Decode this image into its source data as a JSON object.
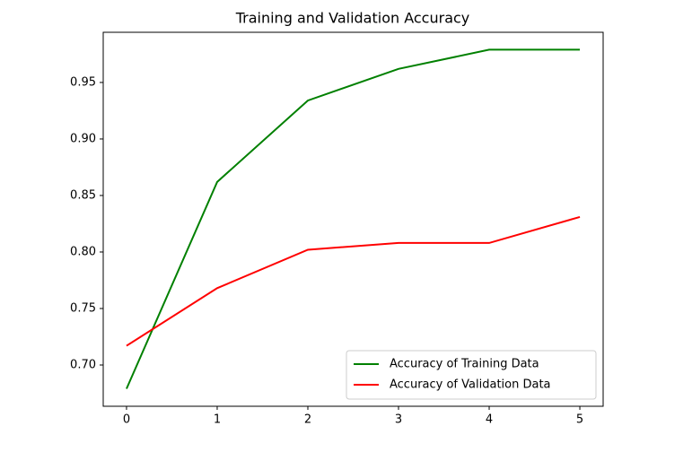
{
  "chart_data": {
    "type": "line",
    "title": "Training and Validation Accuracy",
    "x": [
      0,
      1,
      2,
      3,
      4,
      5
    ],
    "series": [
      {
        "name": "Accuracy of Training Data",
        "color": "#008000",
        "values": [
          0.679,
          0.862,
          0.934,
          0.962,
          0.979,
          0.979
        ]
      },
      {
        "name": "Accuracy of Validation Data",
        "color": "#ff0000",
        "values": [
          0.717,
          0.768,
          0.802,
          0.808,
          0.808,
          0.831
        ]
      }
    ],
    "xlim": [
      -0.257,
      5.257
    ],
    "xticks": [
      0,
      1,
      2,
      3,
      4,
      5
    ],
    "ylim": [
      0.6635,
      0.9944
    ],
    "yticks": [
      {
        "value": 0.7,
        "label": "0.70"
      },
      {
        "value": 0.75,
        "label": "0.75"
      },
      {
        "value": 0.8,
        "label": "0.80"
      },
      {
        "value": 0.85,
        "label": "0.85"
      },
      {
        "value": 0.9,
        "label": "0.90"
      },
      {
        "value": 0.95,
        "label": "0.95"
      }
    ],
    "legend": "lower right",
    "grid": false
  }
}
